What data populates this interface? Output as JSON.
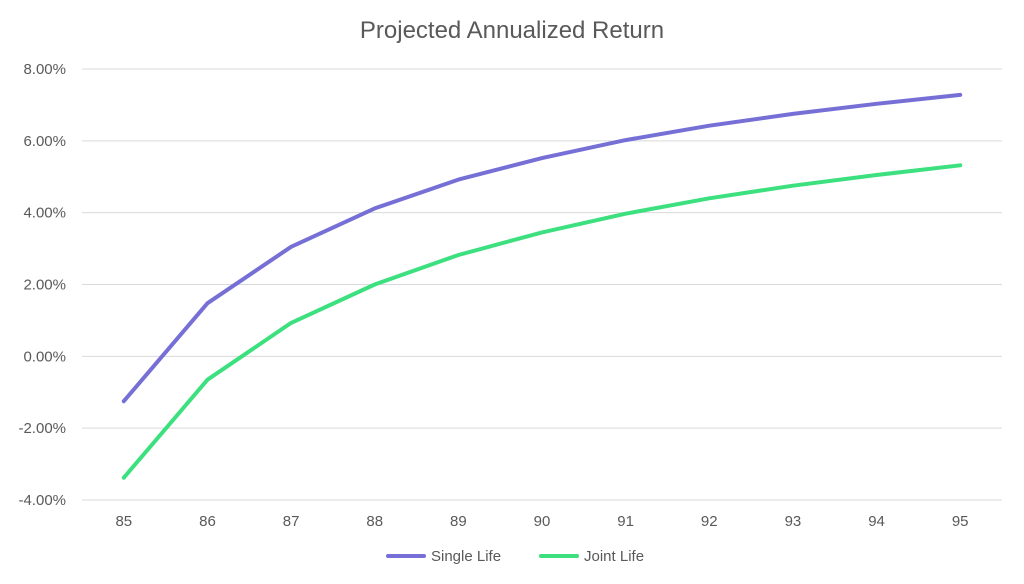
{
  "chart_data": {
    "type": "line",
    "title": "Projected Annualized Return",
    "xlabel": "",
    "ylabel": "",
    "x": [
      "85",
      "86",
      "87",
      "88",
      "89",
      "90",
      "91",
      "92",
      "93",
      "94",
      "95"
    ],
    "ylim": [
      -4,
      8
    ],
    "yticks": [
      "-4.00%",
      "-2.00%",
      "0.00%",
      "2.00%",
      "4.00%",
      "6.00%",
      "8.00%"
    ],
    "grid": true,
    "legend_position": "bottom",
    "series": [
      {
        "name": "Single Life",
        "color": "#7670d6",
        "values": [
          -1.25,
          1.48,
          3.05,
          4.12,
          4.92,
          5.52,
          6.02,
          6.42,
          6.75,
          7.03,
          7.28
        ]
      },
      {
        "name": "Joint Life",
        "color": "#3de07f",
        "values": [
          -3.38,
          -0.65,
          0.93,
          2.0,
          2.82,
          3.45,
          3.97,
          4.4,
          4.75,
          5.05,
          5.32
        ]
      }
    ]
  }
}
